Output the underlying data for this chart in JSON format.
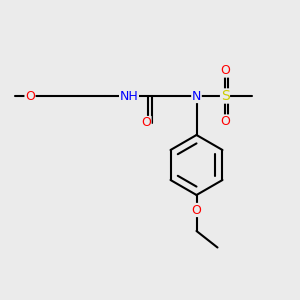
{
  "background_color": "#ebebeb",
  "bond_color": "#000000",
  "atom_colors": {
    "O": "#ff0000",
    "N": "#0000ff",
    "S": "#cccc00",
    "H": "#808080",
    "C": "#000000"
  },
  "font_size": 9,
  "lw": 1.5
}
